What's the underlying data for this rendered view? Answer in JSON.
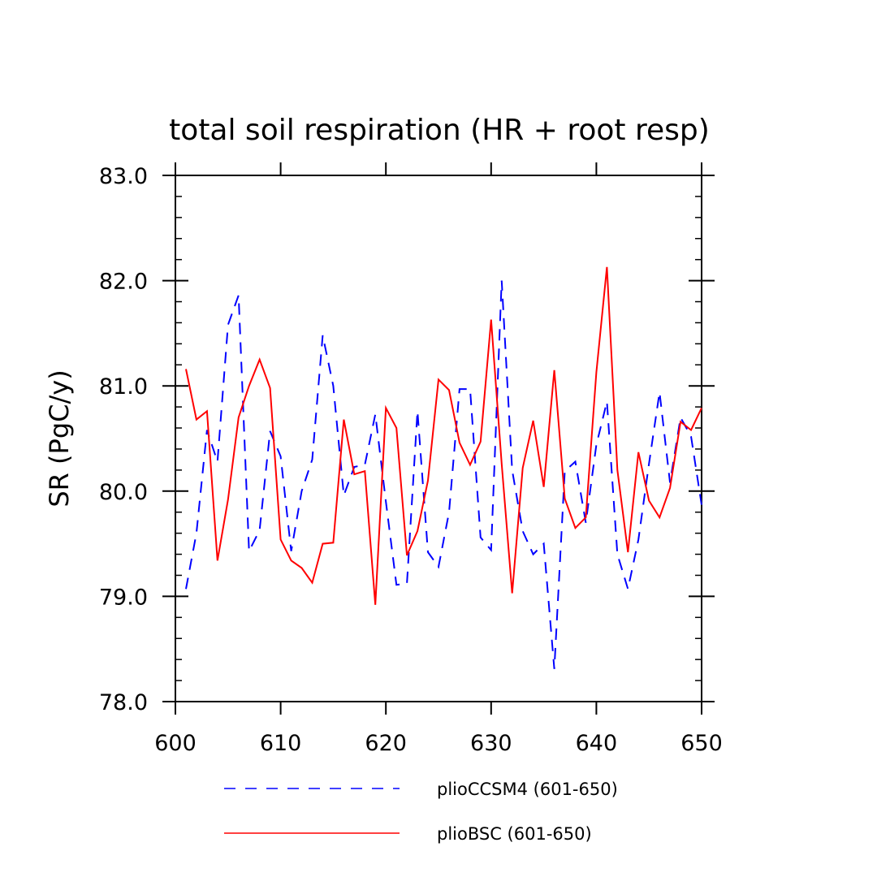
{
  "chart_data": {
    "type": "line",
    "title": "total soil respiration (HR + root resp)",
    "xlabel": "",
    "ylabel": "SR (PgC/y)",
    "xlim": [
      600,
      650
    ],
    "ylim": [
      78.0,
      83.0
    ],
    "x_ticks": [
      600,
      610,
      620,
      630,
      640,
      650
    ],
    "x_tick_labels": [
      "600",
      "610",
      "620",
      "630",
      "640",
      "650"
    ],
    "y_ticks": [
      78.0,
      79.0,
      80.0,
      81.0,
      82.0,
      83.0
    ],
    "y_tick_labels": [
      "78.0",
      "79.0",
      "80.0",
      "81.0",
      "82.0",
      "83.0"
    ],
    "grid": false,
    "legend_position": "bottom",
    "x": [
      601,
      602,
      603,
      604,
      605,
      606,
      607,
      608,
      609,
      610,
      611,
      612,
      613,
      614,
      615,
      616,
      617,
      618,
      619,
      620,
      621,
      622,
      623,
      624,
      625,
      626,
      627,
      628,
      629,
      630,
      631,
      632,
      633,
      634,
      635,
      636,
      637,
      638,
      639,
      640,
      641,
      642,
      643,
      644,
      645,
      646,
      647,
      648,
      649,
      650
    ],
    "series": [
      {
        "name": "plioCCSM4 (601-650)",
        "color": "#0000ff",
        "dash": "dashed",
        "values": [
          79.07,
          79.6,
          80.58,
          80.28,
          81.58,
          81.86,
          79.43,
          79.63,
          80.57,
          80.33,
          79.43,
          80.0,
          80.3,
          81.48,
          81.0,
          79.96,
          80.23,
          80.25,
          80.73,
          79.9,
          79.11,
          79.12,
          80.76,
          79.42,
          79.28,
          79.8,
          80.97,
          80.97,
          79.56,
          79.44,
          82.0,
          80.2,
          79.62,
          79.4,
          79.5,
          78.31,
          80.19,
          80.28,
          79.7,
          80.44,
          80.85,
          79.4,
          79.07,
          79.54,
          80.26,
          80.94,
          80.08,
          80.7,
          80.52,
          79.87
        ]
      },
      {
        "name": "plioBSC (601-650)",
        "color": "#ff0000",
        "dash": "solid",
        "values": [
          81.16,
          80.68,
          80.76,
          79.34,
          79.92,
          80.7,
          81.0,
          81.25,
          80.98,
          79.54,
          79.34,
          79.27,
          79.13,
          79.5,
          79.51,
          80.68,
          80.16,
          80.19,
          78.92,
          80.79,
          80.6,
          79.39,
          79.62,
          80.1,
          81.06,
          80.96,
          80.46,
          80.25,
          80.47,
          81.63,
          80.26,
          79.03,
          80.22,
          80.67,
          80.04,
          81.15,
          79.93,
          79.65,
          79.75,
          81.13,
          82.13,
          80.2,
          79.42,
          80.37,
          79.91,
          79.75,
          80.03,
          80.66,
          80.58,
          80.79
        ]
      }
    ]
  }
}
